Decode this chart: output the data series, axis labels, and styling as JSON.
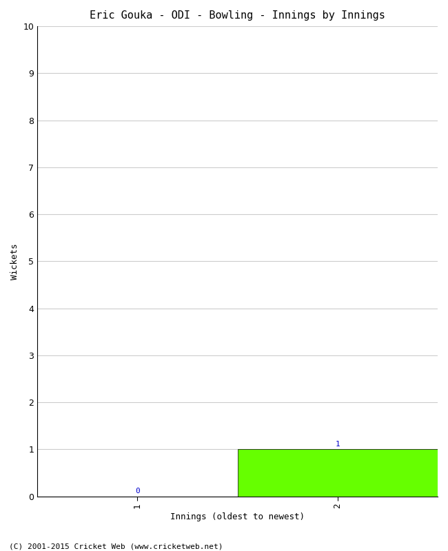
{
  "title": "Eric Gouka - ODI - Bowling - Innings by Innings",
  "xlabel": "Innings (oldest to newest)",
  "ylabel": "Wickets",
  "categories": [
    1,
    2
  ],
  "values": [
    0,
    1
  ],
  "bar_color": "#66ff00",
  "bar_edge_color": "#000000",
  "ylim": [
    0,
    10
  ],
  "yticks": [
    0,
    1,
    2,
    3,
    4,
    5,
    6,
    7,
    8,
    9,
    10
  ],
  "xtick_labels": [
    "1",
    "2"
  ],
  "value_labels": [
    "0",
    "1"
  ],
  "value_label_color": "#0000cc",
  "footer": "(C) 2001-2015 Cricket Web (www.cricketweb.net)",
  "bg_color": "#ffffff",
  "grid_color": "#cccccc",
  "bar_width": 1.0,
  "title_fontsize": 11,
  "axis_fontsize": 9,
  "tick_fontsize": 9,
  "footer_fontsize": 8,
  "value_label_fontsize": 8,
  "xlim": [
    0.5,
    2.5
  ]
}
